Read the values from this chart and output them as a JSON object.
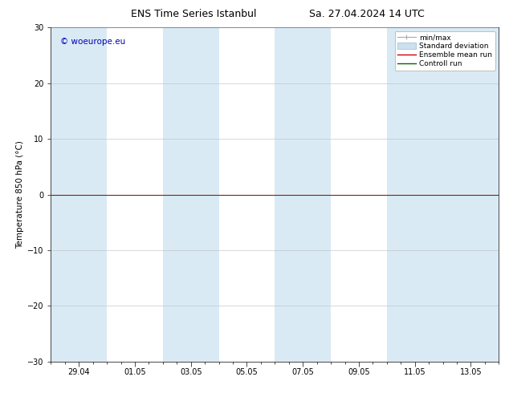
{
  "title_left": "ENS Time Series Istanbul",
  "title_right": "Sa. 27.04.2024 14 UTC",
  "ylabel": "Temperature 850 hPa (°C)",
  "watermark": "© woeurope.eu",
  "ylim": [
    -30,
    30
  ],
  "yticks": [
    -30,
    -20,
    -10,
    0,
    10,
    20,
    30
  ],
  "x_tick_labels": [
    "29.04",
    "01.05",
    "03.05",
    "05.05",
    "07.05",
    "09.05",
    "11.05",
    "13.05"
  ],
  "x_tick_positions": [
    1,
    3,
    5,
    7,
    9,
    11,
    13,
    15
  ],
  "shaded_bands": [
    {
      "x_start": 0,
      "x_end": 2
    },
    {
      "x_start": 4,
      "x_end": 6
    },
    {
      "x_start": 8,
      "x_end": 10
    },
    {
      "x_start": 12,
      "x_end": 16
    }
  ],
  "minmax_color": "#aaaaaa",
  "std_color": "#cce0f0",
  "ensemble_mean_color": "#cc0000",
  "control_color": "#006600",
  "background_color": "#ffffff",
  "plot_bg_color": "#ffffff",
  "shaded_color": "#daeaf5",
  "legend_labels": [
    "min/max",
    "Standard deviation",
    "Ensemble mean run",
    "Controll run"
  ],
  "title_fontsize": 9,
  "label_fontsize": 7.5,
  "tick_fontsize": 7,
  "watermark_fontsize": 7.5,
  "watermark_color": "#0000bb",
  "x_min": 0,
  "x_max": 16
}
